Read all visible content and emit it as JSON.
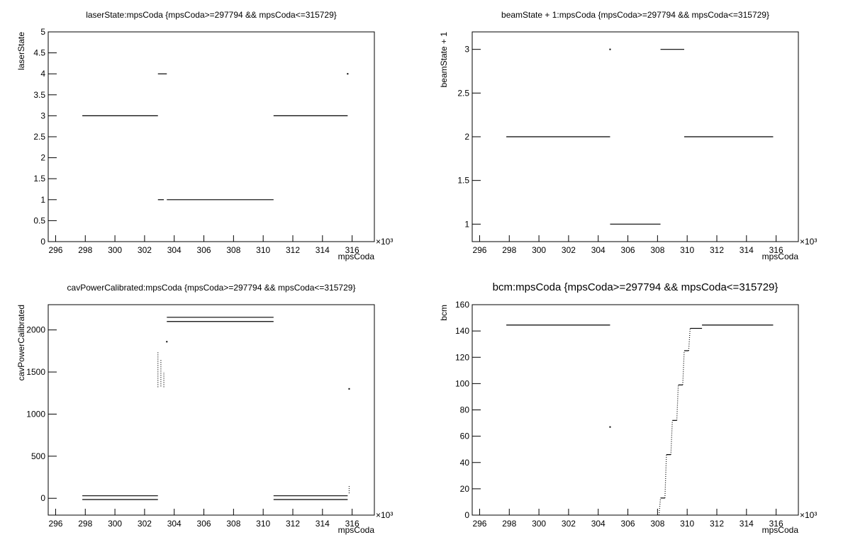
{
  "chart_data": [
    {
      "type": "scatter",
      "title": "laserState:mpsCoda {mpsCoda>=297794 && mpsCoda<=315729}",
      "x_label": "mpsCoda",
      "y_label": "laserState",
      "x_multiplier": "×10³",
      "xlim": [
        295.5,
        317.5
      ],
      "xticks": [
        296,
        298,
        300,
        302,
        304,
        306,
        308,
        310,
        312,
        314,
        316
      ],
      "ylim": [
        0,
        5
      ],
      "yticks": [
        0,
        0.5,
        1,
        1.5,
        2,
        2.5,
        3,
        3.5,
        4,
        4.5,
        5
      ],
      "color": "#000000",
      "segments": [
        {
          "x": [
            297.8,
            302.9
          ],
          "y": [
            3,
            3
          ]
        },
        {
          "x": [
            302.9,
            303.5
          ],
          "y": [
            4,
            4
          ]
        },
        {
          "x": [
            302.9,
            303.3
          ],
          "y": [
            1,
            1
          ]
        },
        {
          "x": [
            303.5,
            310.7
          ],
          "y": [
            1,
            1
          ]
        },
        {
          "x": [
            310.7,
            315.7
          ],
          "y": [
            3,
            3
          ]
        },
        {
          "x": [
            315.7,
            315.7
          ],
          "y": [
            4,
            4
          ]
        }
      ]
    },
    {
      "type": "scatter",
      "title": "beamState + 1:mpsCoda {mpsCoda>=297794 && mpsCoda<=315729}",
      "x_label": "mpsCoda",
      "y_label": "beamState + 1",
      "x_multiplier": "×10³",
      "xlim": [
        295.5,
        317.5
      ],
      "xticks": [
        296,
        298,
        300,
        302,
        304,
        306,
        308,
        310,
        312,
        314,
        316
      ],
      "ylim": [
        0.8,
        3.2
      ],
      "yticks": [
        1,
        1.5,
        2,
        2.5,
        3
      ],
      "color": "#000000",
      "segments": [
        {
          "x": [
            297.8,
            304.8
          ],
          "y": [
            2,
            2
          ]
        },
        {
          "x": [
            304.8,
            304.8
          ],
          "y": [
            3,
            3
          ]
        },
        {
          "x": [
            304.8,
            308.2
          ],
          "y": [
            1,
            1
          ]
        },
        {
          "x": [
            308.2,
            309.8
          ],
          "y": [
            3,
            3
          ]
        },
        {
          "x": [
            309.8,
            315.8
          ],
          "y": [
            2,
            2
          ]
        }
      ]
    },
    {
      "type": "scatter",
      "title": "cavPowerCalibrated:mpsCoda {mpsCoda>=297794 && mpsCoda<=315729}",
      "x_label": "mpsCoda",
      "y_label": "cavPowerCalibrated",
      "x_multiplier": "×10³",
      "xlim": [
        295.5,
        317.5
      ],
      "xticks": [
        296,
        298,
        300,
        302,
        304,
        306,
        308,
        310,
        312,
        314,
        316
      ],
      "ylim": [
        -200,
        2300
      ],
      "yticks": [
        0,
        500,
        1000,
        1500,
        2000
      ],
      "color": "#000000",
      "segments": [
        {
          "x": [
            297.8,
            302.9
          ],
          "y": [
            30,
            30
          ]
        },
        {
          "x": [
            297.8,
            302.9
          ],
          "y": [
            -15,
            -15
          ]
        },
        {
          "x": [
            302.9,
            302.9
          ],
          "y": [
            1320,
            1750
          ]
        },
        {
          "x": [
            303.1,
            303.1
          ],
          "y": [
            1330,
            1650
          ]
        },
        {
          "x": [
            303.3,
            303.3
          ],
          "y": [
            1320,
            1500
          ]
        },
        {
          "x": [
            303.5,
            303.5
          ],
          "y": [
            1860,
            1860
          ]
        },
        {
          "x": [
            303.5,
            310.7
          ],
          "y": [
            2150,
            2150
          ]
        },
        {
          "x": [
            303.5,
            310.7
          ],
          "y": [
            2100,
            2100
          ]
        },
        {
          "x": [
            310.7,
            315.7
          ],
          "y": [
            30,
            30
          ]
        },
        {
          "x": [
            310.7,
            315.7
          ],
          "y": [
            -15,
            -15
          ]
        },
        {
          "x": [
            315.8,
            315.8
          ],
          "y": [
            1300,
            1300
          ]
        },
        {
          "x": [
            315.8,
            315.8
          ],
          "y": [
            60,
            160
          ]
        }
      ]
    },
    {
      "type": "scatter",
      "title": "bcm:mpsCoda {mpsCoda>=297794 && mpsCoda<=315729}",
      "x_label": "mpsCoda",
      "y_label": "bcm",
      "x_multiplier": "×10³",
      "xlim": [
        295.5,
        317.5
      ],
      "xticks": [
        296,
        298,
        300,
        302,
        304,
        306,
        308,
        310,
        312,
        314,
        316
      ],
      "ylim": [
        0,
        160
      ],
      "yticks": [
        0,
        20,
        40,
        60,
        80,
        100,
        120,
        140,
        160
      ],
      "color": "#000000",
      "segments": [
        {
          "x": [
            297.8,
            304.8
          ],
          "y": [
            144.5,
            144.5
          ]
        },
        {
          "x": [
            304.8,
            304.8
          ],
          "y": [
            67,
            67
          ]
        },
        {
          "x": [
            308.1,
            308.2
          ],
          "y": [
            0,
            13
          ]
        },
        {
          "x": [
            308.2,
            308.5
          ],
          "y": [
            13,
            13
          ]
        },
        {
          "x": [
            308.5,
            308.6
          ],
          "y": [
            13,
            46
          ]
        },
        {
          "x": [
            308.6,
            308.9
          ],
          "y": [
            46,
            46
          ]
        },
        {
          "x": [
            308.9,
            309.0
          ],
          "y": [
            46,
            72
          ]
        },
        {
          "x": [
            309.0,
            309.3
          ],
          "y": [
            72,
            72
          ]
        },
        {
          "x": [
            309.3,
            309.4
          ],
          "y": [
            72,
            99
          ]
        },
        {
          "x": [
            309.4,
            309.7
          ],
          "y": [
            99,
            99
          ]
        },
        {
          "x": [
            309.7,
            309.8
          ],
          "y": [
            99,
            125
          ]
        },
        {
          "x": [
            309.8,
            310.1
          ],
          "y": [
            125,
            125
          ]
        },
        {
          "x": [
            310.1,
            310.2
          ],
          "y": [
            125,
            142
          ]
        },
        {
          "x": [
            310.2,
            311.0
          ],
          "y": [
            142,
            142
          ]
        },
        {
          "x": [
            311.0,
            315.8
          ],
          "y": [
            144.5,
            144.5
          ]
        }
      ]
    }
  ]
}
